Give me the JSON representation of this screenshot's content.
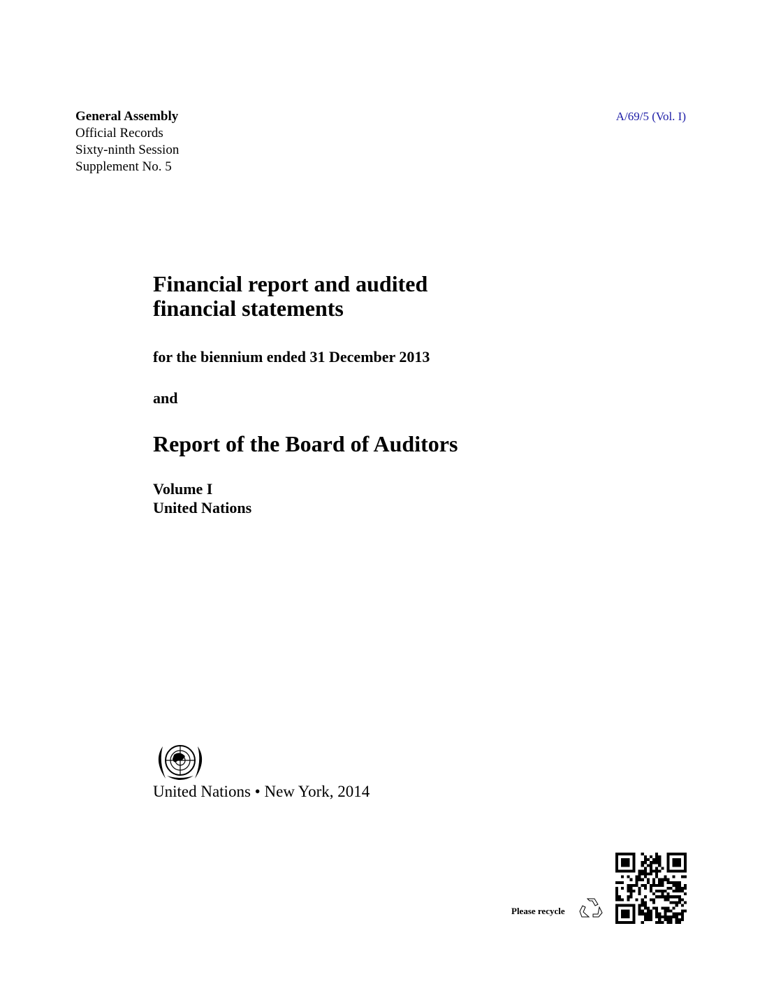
{
  "header": {
    "organ": "General Assembly",
    "records": "Official Records",
    "session": "Sixty-ninth Session",
    "supplement": "Supplement No. 5",
    "symbol": "A/69/5 (Vol. I)",
    "symbol_color": "#1a1aa6"
  },
  "title": {
    "line1": "Financial report and audited",
    "line2": "financial statements",
    "period": "for the biennium ended 31 December 2013",
    "conjunction": "and",
    "report": "Report of the Board of Auditors",
    "volume": "Volume I",
    "entity": "United Nations"
  },
  "imprint": {
    "emblem_icon": "un-emblem-icon",
    "publisher": "United Nations",
    "separator": "•",
    "place_year": "New York, 2014"
  },
  "footer": {
    "recycle_label": "Please recycle",
    "recycle_icon": "recycle-icon",
    "qr_icon": "qr-code-icon"
  }
}
